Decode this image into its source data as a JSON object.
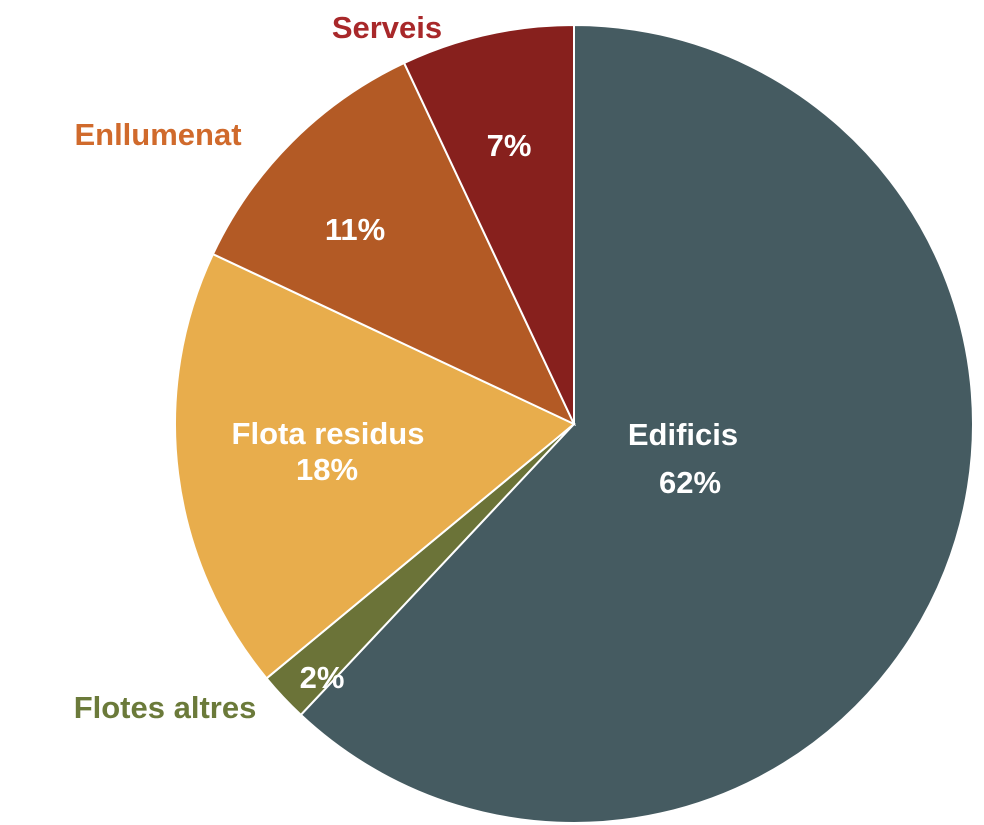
{
  "chart_data": {
    "type": "pie",
    "start_angle": "12 o'clock",
    "direction": "clockwise",
    "slices": [
      {
        "label": "Edificis",
        "value": 62,
        "value_label": "62%",
        "color": "#455b61"
      },
      {
        "label": "Flotes altres",
        "value": 2,
        "value_label": "2%",
        "color": "#6b7338",
        "label_color": "#6b7a3a"
      },
      {
        "label": "Flota residus",
        "value": 18,
        "value_label": "18%",
        "color": "#e8ad4c"
      },
      {
        "label": "Enllumenat",
        "value": 11,
        "value_label": "11%",
        "color": "#b35a25",
        "label_color": "#d06a2c"
      },
      {
        "label": "Serveis",
        "value": 7,
        "value_label": "7%",
        "color": "#87201d",
        "label_color": "#a8282a"
      }
    ]
  }
}
